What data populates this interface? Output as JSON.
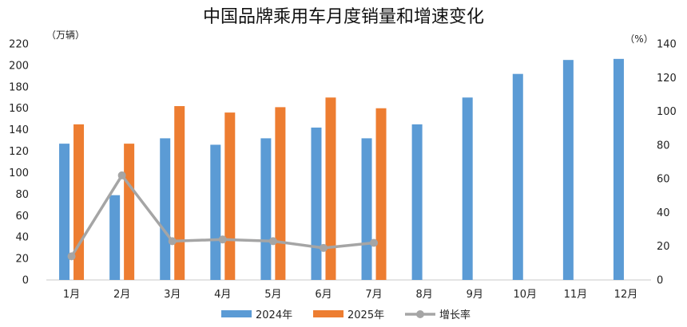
{
  "chart_data": {
    "type": "bar",
    "title": "中国品牌乘用车月度销量和增速变化",
    "left_unit": "（万辆）",
    "right_unit": "（%）",
    "categories": [
      "1月",
      "2月",
      "3月",
      "4月",
      "5月",
      "6月",
      "7月",
      "8月",
      "9月",
      "10月",
      "11月",
      "12月"
    ],
    "series": [
      {
        "name": "2024年",
        "type": "bar",
        "axis": "left",
        "color": "#5B9BD5",
        "values": [
          127,
          79,
          132,
          126,
          132,
          142,
          132,
          145,
          170,
          192,
          205,
          206
        ]
      },
      {
        "name": "2025年",
        "type": "bar",
        "axis": "left",
        "color": "#ED7D31",
        "values": [
          145,
          127,
          162,
          156,
          161,
          170,
          160,
          null,
          null,
          null,
          null,
          null
        ]
      },
      {
        "name": "增长率",
        "type": "line",
        "axis": "right",
        "color": "#A5A5A5",
        "values": [
          14,
          62,
          23,
          24,
          23,
          19,
          22,
          null,
          null,
          null,
          null,
          null
        ]
      }
    ],
    "left_axis": {
      "ylim": [
        0,
        220
      ],
      "ticks": [
        "0",
        "20",
        "40",
        "60",
        "80",
        "100",
        "120",
        "140",
        "160",
        "180",
        "200",
        "220"
      ]
    },
    "right_axis": {
      "ylim": [
        0,
        140
      ],
      "ticks": [
        "0",
        "20",
        "40",
        "60",
        "80",
        "100",
        "120",
        "140"
      ]
    },
    "grid": false,
    "legend_position": "bottom"
  }
}
